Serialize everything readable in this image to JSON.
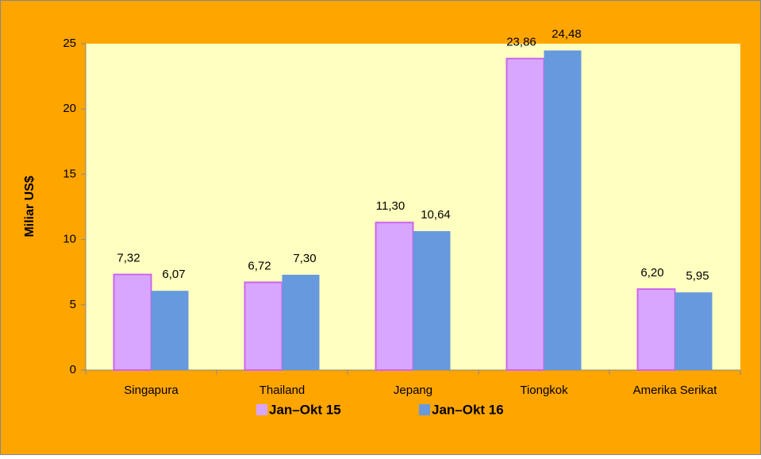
{
  "chart_data": {
    "type": "bar",
    "y_label": "Miliar US$",
    "categories": [
      "Singapura",
      "Thailand",
      "Jepang",
      "Tiongkok",
      "Amerika Serikat"
    ],
    "series": [
      {
        "name": "Jan–Okt 15",
        "color": "#d9a6ff",
        "values": [
          7.32,
          6.72,
          11.3,
          23.86,
          6.2
        ],
        "value_labels": [
          "7,32",
          "6,72",
          "11,30",
          "23,86",
          "6,20"
        ]
      },
      {
        "name": "Jan–Okt 16",
        "color": "#6699dd",
        "values": [
          6.07,
          7.3,
          10.64,
          24.48,
          5.95
        ],
        "value_labels": [
          "6,07",
          "7,30",
          "10,64",
          "24,48",
          "5,95"
        ]
      }
    ],
    "ylim": [
      0,
      25
    ],
    "yticks": [
      0,
      5,
      10,
      15,
      20,
      25
    ],
    "legend": "bottom"
  }
}
